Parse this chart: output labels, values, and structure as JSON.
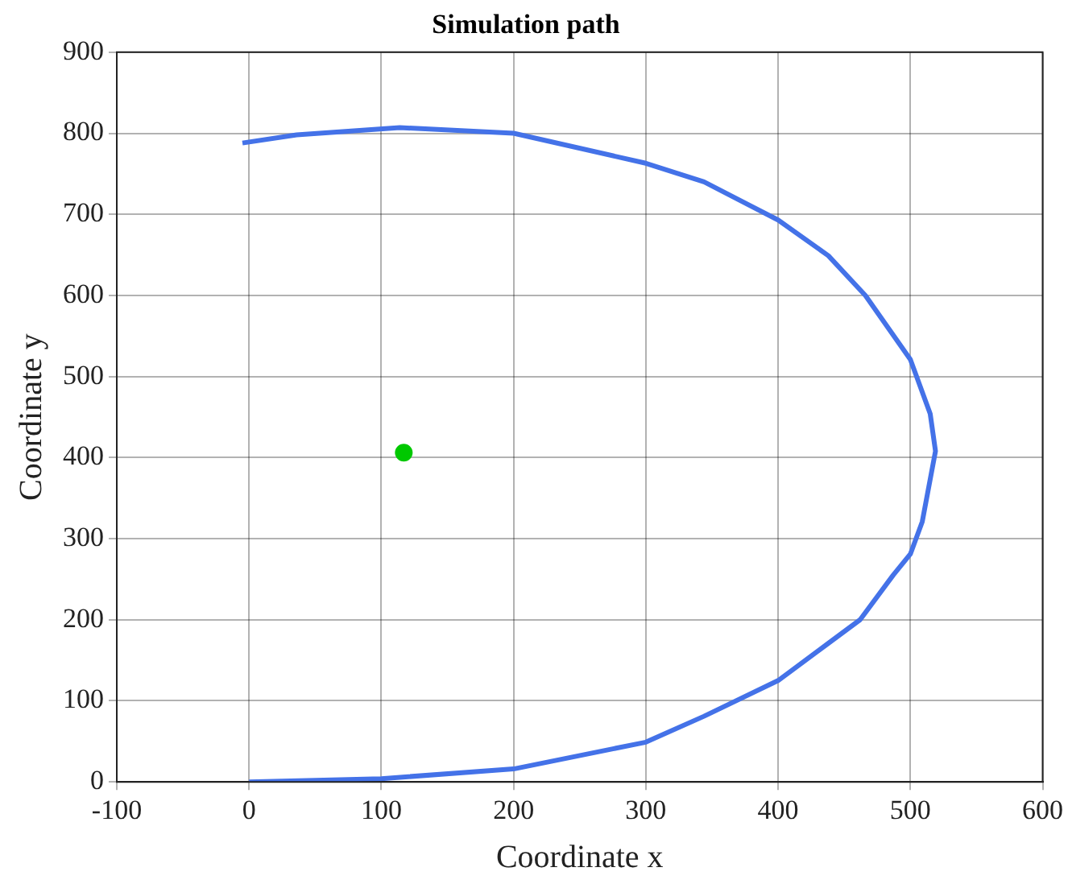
{
  "chart_data": {
    "type": "line",
    "title": "Simulation path",
    "xlabel": "Coordinate x",
    "ylabel": "Coordinate y",
    "xlim": [
      -100,
      600
    ],
    "xticks": [
      -100,
      0,
      100,
      200,
      300,
      400,
      500,
      600
    ],
    "ylim": [
      0,
      900
    ],
    "yticks": [
      0,
      100,
      200,
      300,
      400,
      500,
      600,
      700,
      800,
      900
    ],
    "grid": true,
    "marker": "none",
    "series": [
      {
        "color": "#4472e8",
        "x": [
          0,
          100,
          200,
          300,
          344,
          400,
          438,
          462,
          487,
          500,
          509,
          519,
          515,
          500,
          466,
          438,
          400,
          344,
          300,
          200,
          114,
          36,
          -5
        ],
        "values": [
          0,
          4,
          16,
          49,
          81,
          125,
          171,
          200,
          255,
          281,
          321,
          408,
          454,
          521,
          600,
          649,
          693,
          740,
          763,
          800,
          807,
          798,
          788
        ]
      },
      {
        "type": "scatter",
        "color": "#00c800",
        "marker": "circle",
        "x": [
          117
        ],
        "values": [
          406
        ]
      }
    ]
  }
}
